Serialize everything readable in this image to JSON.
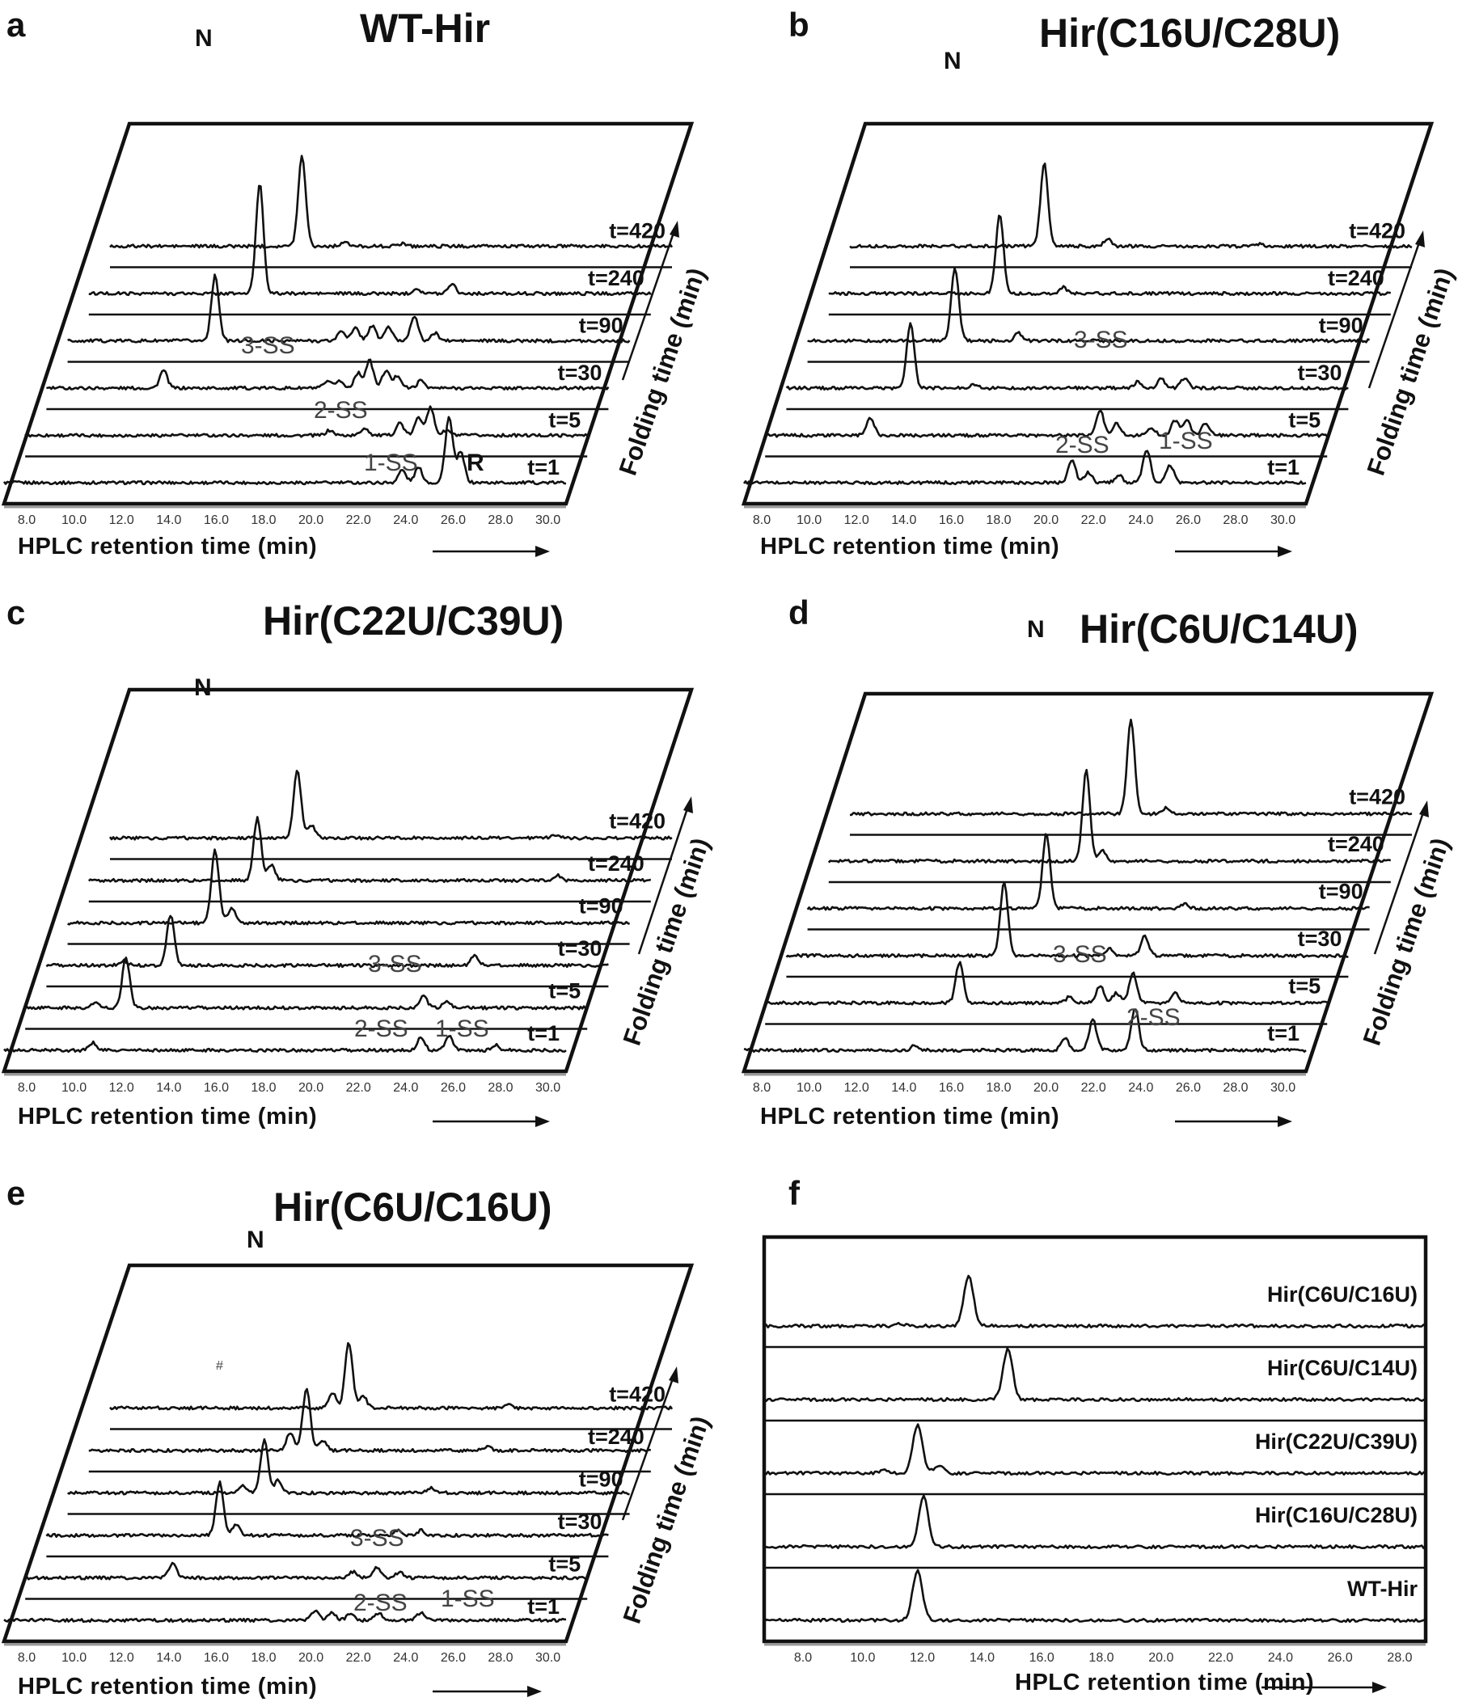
{
  "chart_data": [
    {
      "panel": "a",
      "type": "line",
      "title": "WT-Hir",
      "xlabel": "HPLC retention time (min)",
      "ylabel": "Folding time (min)",
      "xticks": [
        "8.0",
        "10.0",
        "12.0",
        "14.0",
        "16.0",
        "18.0",
        "20.0",
        "22.0",
        "24.0",
        "26.0",
        "28.0",
        "30.0"
      ],
      "xlim": [
        7.5,
        31.5
      ],
      "series": [
        {
          "name": "t=1",
          "peaks": [
            [
              24.5,
              0.25
            ],
            [
              25.2,
              0.3
            ],
            [
              26.5,
              1.3
            ],
            [
              27.0,
              0.6
            ]
          ]
        },
        {
          "name": "t=5",
          "peaks": [
            [
              20.5,
              0.1
            ],
            [
              22.0,
              0.15
            ],
            [
              23.5,
              0.25
            ],
            [
              24.3,
              0.35
            ],
            [
              24.8,
              0.55
            ],
            [
              25.5,
              0.1
            ]
          ]
        },
        {
          "name": "t=30",
          "peaks": [
            [
              12.5,
              0.35
            ],
            [
              19.5,
              0.12
            ],
            [
              20.0,
              0.15
            ],
            [
              20.8,
              0.3
            ],
            [
              21.3,
              0.55
            ],
            [
              22.0,
              0.35
            ],
            [
              22.5,
              0.25
            ],
            [
              23.5,
              0.15
            ]
          ]
        },
        {
          "name": "t=90",
          "peaks": [
            [
              13.8,
              1.3
            ],
            [
              19.2,
              0.2
            ],
            [
              19.8,
              0.25
            ],
            [
              20.5,
              0.3
            ],
            [
              21.2,
              0.28
            ],
            [
              22.3,
              0.5
            ],
            [
              23.2,
              0.15
            ]
          ]
        },
        {
          "name": "t=240",
          "peaks": [
            [
              14.8,
              2.2
            ],
            [
              21.5,
              0.1
            ],
            [
              23.0,
              0.2
            ]
          ]
        },
        {
          "name": "t=420",
          "peaks": [
            [
              15.7,
              1.8
            ],
            [
              17.5,
              0.08
            ],
            [
              20.0,
              0.06
            ]
          ]
        }
      ],
      "annotations": [
        "N",
        "3-SS",
        "2-SS",
        "1-SS",
        "R"
      ]
    },
    {
      "panel": "b",
      "type": "line",
      "title": "Hir(C16U/C28U)",
      "xlabel": "HPLC retention time (min)",
      "ylabel": "Folding time (min)",
      "xticks": [
        "8.0",
        "10.0",
        "12.0",
        "14.0",
        "16.0",
        "18.0",
        "20.0",
        "22.0",
        "24.0",
        "26.0",
        "28.0",
        "30.0"
      ],
      "xlim": [
        7.5,
        31.5
      ],
      "series": [
        {
          "name": "t=1",
          "peaks": [
            [
              21.5,
              0.45
            ],
            [
              22.2,
              0.2
            ],
            [
              23.5,
              0.15
            ],
            [
              24.7,
              0.65
            ],
            [
              25.7,
              0.35
            ]
          ]
        },
        {
          "name": "t=5",
          "peaks": [
            [
              12.0,
              0.35
            ],
            [
              21.8,
              0.5
            ],
            [
              22.5,
              0.25
            ],
            [
              24.0,
              0.15
            ],
            [
              25.0,
              0.3
            ],
            [
              25.5,
              0.3
            ],
            [
              26.3,
              0.25
            ]
          ]
        },
        {
          "name": "t=30",
          "peaks": [
            [
              12.8,
              1.3
            ],
            [
              15.5,
              0.08
            ],
            [
              22.5,
              0.12
            ],
            [
              23.5,
              0.18
            ],
            [
              24.5,
              0.2
            ]
          ]
        },
        {
          "name": "t=90",
          "peaks": [
            [
              13.8,
              1.45
            ],
            [
              16.5,
              0.15
            ]
          ]
        },
        {
          "name": "t=240",
          "peaks": [
            [
              14.8,
              1.6
            ],
            [
              17.5,
              0.12
            ]
          ]
        },
        {
          "name": "t=420",
          "peaks": [
            [
              15.8,
              1.65
            ],
            [
              18.5,
              0.15
            ],
            [
              25.0,
              0.05
            ]
          ]
        }
      ],
      "annotations": [
        "N",
        "3-SS",
        "2-SS",
        "1-SS"
      ]
    },
    {
      "panel": "c",
      "type": "line",
      "title": "Hir(C22U/C39U)",
      "xlabel": "HPLC retention time (min)",
      "ylabel": "Folding time (min)",
      "xticks": [
        "8.0",
        "10.0",
        "12.0",
        "14.0",
        "16.0",
        "18.0",
        "20.0",
        "22.0",
        "24.0",
        "26.0",
        "28.0",
        "30.0"
      ],
      "xlim": [
        7.5,
        31.5
      ],
      "series": [
        {
          "name": "t=1",
          "peaks": [
            [
              11.3,
              0.15
            ],
            [
              25.3,
              0.25
            ],
            [
              26.5,
              0.3
            ],
            [
              28.5,
              0.1
            ]
          ]
        },
        {
          "name": "t=5",
          "peaks": [
            [
              10.5,
              0.1
            ],
            [
              11.8,
              1.0
            ],
            [
              24.5,
              0.25
            ],
            [
              25.5,
              0.12
            ]
          ]
        },
        {
          "name": "t=30",
          "peaks": [
            [
              10.8,
              0.1
            ],
            [
              12.8,
              1.0
            ],
            [
              25.8,
              0.2
            ]
          ]
        },
        {
          "name": "t=90",
          "peaks": [
            [
              13.8,
              1.45
            ],
            [
              14.5,
              0.3
            ]
          ]
        },
        {
          "name": "t=240",
          "peaks": [
            [
              14.7,
              1.25
            ],
            [
              15.3,
              0.3
            ],
            [
              27.5,
              0.1
            ]
          ]
        },
        {
          "name": "t=420",
          "peaks": [
            [
              15.5,
              1.35
            ],
            [
              16.1,
              0.25
            ],
            [
              26.5,
              0.06
            ]
          ]
        }
      ],
      "annotations": [
        "N",
        "3-SS",
        "2-SS",
        "1-SS"
      ]
    },
    {
      "panel": "d",
      "type": "line",
      "title": "Hir(C6U/C14U)",
      "xlabel": "HPLC retention time (min)",
      "ylabel": "Folding time (min)",
      "xticks": [
        "8.0",
        "10.0",
        "12.0",
        "14.0",
        "16.0",
        "18.0",
        "20.0",
        "22.0",
        "24.0",
        "26.0",
        "28.0",
        "30.0"
      ],
      "xlim": [
        7.5,
        31.5
      ],
      "series": [
        {
          "name": "t=1",
          "peaks": [
            [
              14.8,
              0.1
            ],
            [
              21.2,
              0.25
            ],
            [
              22.4,
              0.6
            ],
            [
              24.2,
              0.85
            ]
          ]
        },
        {
          "name": "t=5",
          "peaks": [
            [
              15.8,
              0.8
            ],
            [
              20.5,
              0.12
            ],
            [
              21.8,
              0.35
            ],
            [
              22.5,
              0.2
            ],
            [
              23.2,
              0.6
            ],
            [
              25.0,
              0.2
            ]
          ]
        },
        {
          "name": "t=30",
          "peaks": [
            [
              16.8,
              1.45
            ],
            [
              21.3,
              0.15
            ],
            [
              22.8,
              0.4
            ]
          ]
        },
        {
          "name": "t=90",
          "peaks": [
            [
              17.7,
              1.5
            ],
            [
              23.6,
              0.1
            ]
          ]
        },
        {
          "name": "t=240",
          "peaks": [
            [
              18.5,
              1.8
            ],
            [
              19.2,
              0.2
            ]
          ]
        },
        {
          "name": "t=420",
          "peaks": [
            [
              19.5,
              1.9
            ],
            [
              21.0,
              0.12
            ]
          ]
        }
      ],
      "annotations": [
        "N",
        "3-SS",
        "2-SS"
      ]
    },
    {
      "panel": "e",
      "type": "line",
      "title": "Hir(C6U/C16U)",
      "xlabel": "HPLC retention time (min)",
      "ylabel": "Folding time (min)",
      "xticks": [
        "8.0",
        "10.0",
        "12.0",
        "14.0",
        "16.0",
        "18.0",
        "20.0",
        "22.0",
        "24.0",
        "26.0",
        "28.0",
        "30.0"
      ],
      "xlim": [
        7.5,
        31.5
      ],
      "series": [
        {
          "name": "t=1",
          "peaks": [
            [
              20.8,
              0.2
            ],
            [
              21.5,
              0.15
            ],
            [
              22.3,
              0.15
            ],
            [
              23.5,
              0.15
            ],
            [
              25.3,
              0.15
            ]
          ]
        },
        {
          "name": "t=5",
          "peaks": [
            [
              13.8,
              0.3
            ],
            [
              21.5,
              0.12
            ],
            [
              22.5,
              0.2
            ],
            [
              23.5,
              0.12
            ]
          ]
        },
        {
          "name": "t=30",
          "peaks": [
            [
              14.9,
              1.05
            ],
            [
              15.6,
              0.2
            ],
            [
              22.5,
              0.1
            ],
            [
              23.5,
              0.1
            ]
          ]
        },
        {
          "name": "t=90",
          "peaks": [
            [
              15.0,
              0.15
            ],
            [
              15.9,
              1.05
            ],
            [
              16.5,
              0.25
            ],
            [
              23.0,
              0.1
            ]
          ]
        },
        {
          "name": "t=240",
          "peaks": [
            [
              16.1,
              0.35
            ],
            [
              16.8,
              1.25
            ],
            [
              17.5,
              0.2
            ],
            [
              24.5,
              0.08
            ]
          ]
        },
        {
          "name": "t=420",
          "peaks": [
            [
              17.0,
              0.3
            ],
            [
              17.7,
              1.3
            ],
            [
              18.3,
              0.25
            ],
            [
              24.5,
              0.06
            ]
          ]
        }
      ],
      "annotations": [
        "N",
        "#",
        "3-SS",
        "2-SS",
        "1-SS"
      ]
    },
    {
      "panel": "f",
      "type": "line",
      "xlabel": "HPLC retention time (min)",
      "xticks": [
        "8.0",
        "10.0",
        "12.0",
        "14.0",
        "16.0",
        "18.0",
        "20.0",
        "22.0",
        "24.0",
        "26.0",
        "28.0"
      ],
      "xlim": [
        6.5,
        28.5
      ],
      "series": [
        {
          "name": "WT-Hir",
          "peaks": [
            [
              11.6,
              1.0
            ]
          ]
        },
        {
          "name": "Hir(C16U/C28U)",
          "peaks": [
            [
              11.8,
              1.0
            ]
          ]
        },
        {
          "name": "Hir(C22U/C39U)",
          "peaks": [
            [
              10.5,
              0.07
            ],
            [
              11.6,
              0.95
            ],
            [
              12.3,
              0.15
            ]
          ]
        },
        {
          "name": "Hir(C6U/C14U)",
          "peaks": [
            [
              14.6,
              1.0
            ]
          ]
        },
        {
          "name": "Hir(C6U/C16U)",
          "peaks": [
            [
              11.0,
              0.05
            ],
            [
              13.3,
              1.0
            ]
          ]
        }
      ]
    }
  ]
}
